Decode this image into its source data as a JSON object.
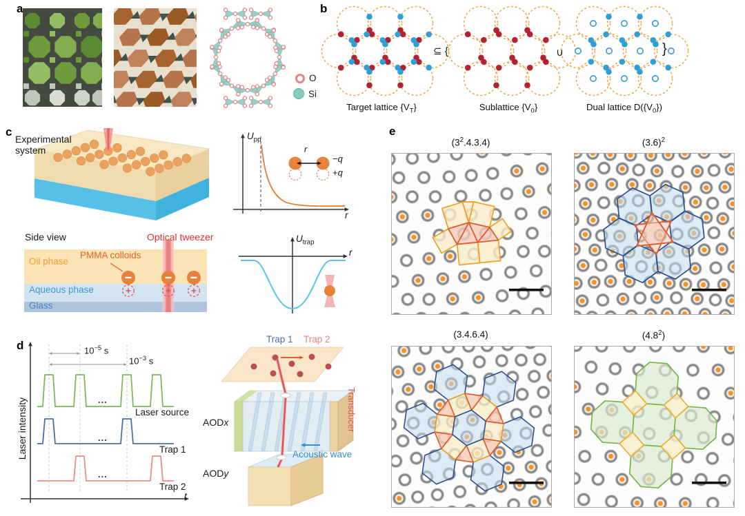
{
  "figure": {
    "panel_labels": {
      "a": "a",
      "b": "b",
      "c": "c",
      "d": "d",
      "e": "e"
    }
  },
  "panel_a": {
    "legend": {
      "oxygen": "O",
      "silicon": "Si"
    }
  },
  "panel_b": {
    "captions": [
      "Target lattice {V<sub>T</sub>}",
      "Sublattice {V<sub>0</sub>}",
      "Dual lattice D({V<sub>0</sub>})"
    ],
    "subset_open": "⊆ {",
    "union": "∪",
    "close_brace": "}"
  },
  "panel_c": {
    "system_title": "Experimental system",
    "side_view": "Side view",
    "optical_tweezer": "Optical tweezer",
    "oil_phase": "Oil phase",
    "pmma": "PMMA colloids",
    "aqueous": "Aqueous phase",
    "glass": "Glass",
    "upp": "<i>U</i><sub>pp</sub>",
    "utrap": "<i>U</i><sub>trap</sub>",
    "r": "<i>r</i>",
    "minus_q": "−<i>q</i>",
    "plus_q": "+<i>q</i>"
  },
  "panel_d": {
    "ylabel": "Laser intensity",
    "xlabel": "<i>t</i>",
    "interval_short": "10<sup>−5</sup> s",
    "interval_long": "10<sup>−3</sup> s",
    "laser_source": "Laser source",
    "trap1": "Trap 1",
    "trap2": "Trap 2",
    "aodx": "AOD<i>x</i>",
    "aody": "AOD<i>y</i>",
    "transducer": "Transducer",
    "acoustic_wave": "Acoustic wave",
    "ellipsis": "..."
  },
  "panel_e": {
    "tilings": [
      {
        "title": "(3<sup>2</sup>.4.3.4)"
      },
      {
        "title": "(3.6)<sup>2</sup>"
      },
      {
        "title": "(3.4.6.4)"
      },
      {
        "title": "(4.8<sup>2</sup>)"
      }
    ]
  },
  "colors": {
    "lattice_edge": "#f2a33c",
    "red_site": "#b22233",
    "blue_site": "#2f9fd6",
    "pulse_green": "#7cb85c",
    "pulse_blue": "#4a6fa5",
    "pulse_red": "#f28b82",
    "overlay_square": "#f0a020",
    "overlay_triangle": "#e0592a",
    "overlay_hexagon": "#2e4f92",
    "overlay_octagon": "#74b84c",
    "particle_orange": "#f0932b",
    "oxygen_pink": "#e58585",
    "silicon_teal": "#85cec5",
    "tweezer_red": "#e03030"
  }
}
